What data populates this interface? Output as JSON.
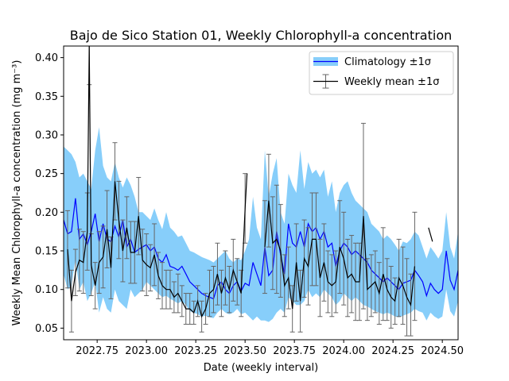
{
  "chart_data": {
    "type": "line",
    "title": "Bajo de Sico Station 01, Weekly Chlorophyll-a concentration",
    "xlabel": "Date (weekly interval)",
    "ylabel": "Weekly Mean Chlorophyll-a concentration (mg m⁻³)",
    "xlim": [
      2022.58,
      2024.58
    ],
    "ylim": [
      0.035,
      0.415
    ],
    "xticks": [
      2022.75,
      2023.0,
      2023.25,
      2023.5,
      2023.75,
      2024.0,
      2024.25,
      2024.5
    ],
    "xtick_labels": [
      "2022.75",
      "2023.00",
      "2023.25",
      "2023.50",
      "2023.75",
      "2024.00",
      "2024.25",
      "2024.50"
    ],
    "yticks": [
      0.05,
      0.1,
      0.15,
      0.2,
      0.25,
      0.3,
      0.35,
      0.4
    ],
    "ytick_labels": [
      "0.05",
      "0.10",
      "0.15",
      "0.20",
      "0.25",
      "0.30",
      "0.35",
      "0.40"
    ],
    "grid": false,
    "legend_position": "top-right",
    "legend": [
      "Climatology ±1σ",
      "Weekly mean ±1σ"
    ],
    "colors": {
      "climatology_line": "#0000ff",
      "climatology_band": "#87cefa",
      "weekly_line": "#000000",
      "errorbar": "#666666"
    },
    "series": [
      {
        "role": "climatology",
        "x": [
          2022.58,
          2022.6,
          2022.62,
          2022.64,
          2022.66,
          2022.68,
          2022.7,
          2022.72,
          2022.74,
          2022.76,
          2022.78,
          2022.8,
          2022.82,
          2022.84,
          2022.86,
          2022.88,
          2022.9,
          2022.92,
          2022.94,
          2022.96,
          2022.98,
          2023.0,
          2023.02,
          2023.04,
          2023.06,
          2023.08,
          2023.1,
          2023.12,
          2023.14,
          2023.16,
          2023.18,
          2023.2,
          2023.22,
          2023.24,
          2023.26,
          2023.28,
          2023.3,
          2023.32,
          2023.34,
          2023.36,
          2023.38,
          2023.4,
          2023.42,
          2023.44,
          2023.46,
          2023.48,
          2023.5,
          2023.52,
          2023.54,
          2023.56,
          2023.58,
          2023.6,
          2023.62,
          2023.64,
          2023.66,
          2023.68,
          2023.7,
          2023.72,
          2023.74,
          2023.76,
          2023.78,
          2023.8,
          2023.82,
          2023.84,
          2023.86,
          2023.88,
          2023.9,
          2023.92,
          2023.94,
          2023.96,
          2023.98,
          2024.0,
          2024.02,
          2024.04,
          2024.06,
          2024.08,
          2024.1,
          2024.12,
          2024.14,
          2024.16,
          2024.18,
          2024.2,
          2024.22,
          2024.24,
          2024.26,
          2024.28,
          2024.3,
          2024.32,
          2024.34,
          2024.36,
          2024.38,
          2024.4,
          2024.42,
          2024.44,
          2024.46,
          2024.48,
          2024.5,
          2024.52,
          2024.54,
          2024.56,
          2024.58
        ],
        "y": [
          0.19,
          0.172,
          0.175,
          0.218,
          0.165,
          0.172,
          0.158,
          0.175,
          0.198,
          0.162,
          0.185,
          0.165,
          0.162,
          0.182,
          0.168,
          0.19,
          0.155,
          0.165,
          0.148,
          0.152,
          0.155,
          0.158,
          0.15,
          0.155,
          0.14,
          0.135,
          0.145,
          0.13,
          0.128,
          0.125,
          0.13,
          0.12,
          0.11,
          0.105,
          0.1,
          0.095,
          0.092,
          0.09,
          0.088,
          0.105,
          0.11,
          0.1,
          0.095,
          0.105,
          0.11,
          0.098,
          0.108,
          0.105,
          0.135,
          0.12,
          0.105,
          0.155,
          0.118,
          0.125,
          0.175,
          0.145,
          0.12,
          0.185,
          0.16,
          0.155,
          0.175,
          0.155,
          0.185,
          0.175,
          0.18,
          0.165,
          0.175,
          0.155,
          0.16,
          0.13,
          0.15,
          0.16,
          0.155,
          0.145,
          0.15,
          0.145,
          0.14,
          0.135,
          0.125,
          0.12,
          0.115,
          0.11,
          0.115,
          0.11,
          0.105,
          0.1,
          0.108,
          0.11,
          0.112,
          0.125,
          0.118,
          0.11,
          0.092,
          0.108,
          0.1,
          0.095,
          0.1,
          0.15,
          0.112,
          0.1,
          0.125
        ],
        "upper": [
          0.285,
          0.28,
          0.275,
          0.265,
          0.245,
          0.25,
          0.24,
          0.23,
          0.28,
          0.31,
          0.26,
          0.245,
          0.24,
          0.265,
          0.245,
          0.232,
          0.245,
          0.235,
          0.22,
          0.2,
          0.2,
          0.195,
          0.19,
          0.205,
          0.19,
          0.178,
          0.2,
          0.18,
          0.175,
          0.168,
          0.17,
          0.16,
          0.15,
          0.148,
          0.145,
          0.142,
          0.14,
          0.138,
          0.135,
          0.14,
          0.145,
          0.15,
          0.14,
          0.135,
          0.14,
          0.138,
          0.15,
          0.165,
          0.22,
          0.18,
          0.165,
          0.28,
          0.22,
          0.25,
          0.27,
          0.2,
          0.185,
          0.25,
          0.235,
          0.225,
          0.28,
          0.23,
          0.265,
          0.25,
          0.255,
          0.245,
          0.255,
          0.22,
          0.24,
          0.2,
          0.225,
          0.235,
          0.24,
          0.225,
          0.215,
          0.21,
          0.205,
          0.2,
          0.185,
          0.18,
          0.175,
          0.165,
          0.17,
          0.165,
          0.158,
          0.15,
          0.162,
          0.16,
          0.165,
          0.175,
          0.17,
          0.155,
          0.14,
          0.155,
          0.148,
          0.14,
          0.15,
          0.2,
          0.155,
          0.14,
          0.175
        ],
        "lower": [
          0.12,
          0.1,
          0.105,
          0.14,
          0.1,
          0.11,
          0.085,
          0.095,
          0.11,
          0.07,
          0.09,
          0.075,
          0.07,
          0.1,
          0.085,
          0.08,
          0.075,
          0.1,
          0.09,
          0.095,
          0.1,
          0.11,
          0.105,
          0.1,
          0.095,
          0.09,
          0.092,
          0.088,
          0.085,
          0.082,
          0.085,
          0.08,
          0.072,
          0.07,
          0.068,
          0.065,
          0.066,
          0.064,
          0.063,
          0.07,
          0.075,
          0.07,
          0.068,
          0.07,
          0.075,
          0.068,
          0.07,
          0.065,
          0.06,
          0.065,
          0.06,
          0.06,
          0.058,
          0.062,
          0.07,
          0.075,
          0.07,
          0.09,
          0.085,
          0.08,
          0.08,
          0.085,
          0.1,
          0.09,
          0.095,
          0.09,
          0.1,
          0.095,
          0.09,
          0.08,
          0.085,
          0.095,
          0.09,
          0.085,
          0.09,
          0.085,
          0.08,
          0.078,
          0.075,
          0.072,
          0.07,
          0.068,
          0.07,
          0.068,
          0.065,
          0.064,
          0.066,
          0.068,
          0.07,
          0.075,
          0.072,
          0.07,
          0.06,
          0.07,
          0.065,
          0.062,
          0.065,
          0.1,
          0.072,
          0.065,
          0.085
        ]
      },
      {
        "role": "weekly",
        "x": [
          2022.6,
          2022.62,
          2022.64,
          2022.66,
          2022.68,
          2022.7,
          2022.71,
          2022.72,
          2022.74,
          2022.76,
          2022.78,
          2022.8,
          2022.82,
          2022.84,
          2022.86,
          2022.88,
          2022.9,
          2022.92,
          2022.94,
          2022.96,
          2022.98,
          2023.0,
          2023.02,
          2023.04,
          2023.06,
          2023.08,
          2023.1,
          2023.12,
          2023.14,
          2023.16,
          2023.18,
          2023.2,
          2023.22,
          2023.24,
          2023.26,
          2023.28,
          2023.3,
          2023.32,
          2023.34,
          2023.36,
          2023.38,
          2023.4,
          2023.42,
          2023.44,
          2023.46,
          2023.48,
          2023.5,
          2023.51,
          null,
          2023.6,
          2023.62,
          2023.64,
          2023.66,
          2023.68,
          2023.7,
          2023.72,
          2023.74,
          2023.76,
          2023.78,
          2023.8,
          2023.82,
          2023.84,
          2023.86,
          2023.88,
          2023.9,
          2023.92,
          2023.94,
          2023.96,
          2023.98,
          2024.0,
          2024.02,
          2024.04,
          2024.06,
          2024.08,
          2024.1,
          2024.12,
          2024.14,
          2024.16,
          2024.18,
          2024.2,
          2024.22,
          2024.24,
          2024.26,
          2024.28,
          2024.3,
          2024.32,
          2024.34,
          2024.36,
          null,
          2024.43,
          2024.45
        ],
        "y": [
          0.152,
          0.085,
          0.122,
          0.138,
          0.135,
          0.175,
          0.415,
          0.132,
          0.105,
          0.135,
          0.142,
          0.178,
          0.128,
          0.24,
          0.19,
          0.15,
          0.18,
          0.148,
          0.148,
          0.195,
          0.138,
          0.132,
          0.128,
          0.145,
          0.118,
          0.105,
          0.1,
          0.1,
          0.09,
          0.095,
          0.085,
          0.075,
          0.075,
          0.07,
          0.085,
          0.065,
          0.075,
          0.095,
          0.1,
          0.12,
          0.095,
          0.115,
          0.1,
          0.125,
          0.11,
          0.095,
          0.205,
          0.25,
          null,
          0.155,
          0.215,
          0.16,
          0.165,
          0.15,
          0.105,
          0.115,
          0.075,
          0.135,
          0.085,
          0.14,
          0.13,
          0.165,
          0.165,
          0.115,
          0.135,
          0.11,
          0.105,
          0.11,
          0.155,
          0.14,
          0.115,
          0.12,
          0.11,
          0.11,
          0.195,
          0.1,
          0.105,
          0.11,
          0.095,
          0.12,
          0.1,
          0.09,
          0.085,
          0.115,
          0.105,
          0.09,
          0.08,
          0.13,
          null,
          0.18,
          0.162
        ],
        "err": [
          0.05,
          0.04,
          0.03,
          0.04,
          0.04,
          0.05,
          0.05,
          0.04,
          0.03,
          0.04,
          0.04,
          0.05,
          0.04,
          0.05,
          0.05,
          0.04,
          0.04,
          0.04,
          0.04,
          0.05,
          0.04,
          0.04,
          0.03,
          0.04,
          0.03,
          0.03,
          0.025,
          0.025,
          0.02,
          0.025,
          0.02,
          0.02,
          0.02,
          0.015,
          0.02,
          0.02,
          0.02,
          0.03,
          0.03,
          0.04,
          0.03,
          0.035,
          0.03,
          0.04,
          0.03,
          0.03,
          0.045,
          0.0,
          null,
          0.06,
          0.06,
          0.06,
          0.07,
          0.06,
          0.04,
          0.04,
          0.03,
          0.05,
          0.04,
          0.05,
          0.05,
          0.06,
          0.06,
          0.05,
          0.05,
          0.04,
          0.04,
          0.04,
          0.06,
          0.06,
          0.05,
          0.05,
          0.05,
          0.05,
          0.12,
          0.04,
          0.04,
          0.04,
          0.04,
          0.06,
          0.04,
          0.04,
          0.03,
          0.05,
          0.05,
          0.05,
          0.04,
          0.07,
          null,
          0.0,
          0.0
        ]
      }
    ]
  }
}
